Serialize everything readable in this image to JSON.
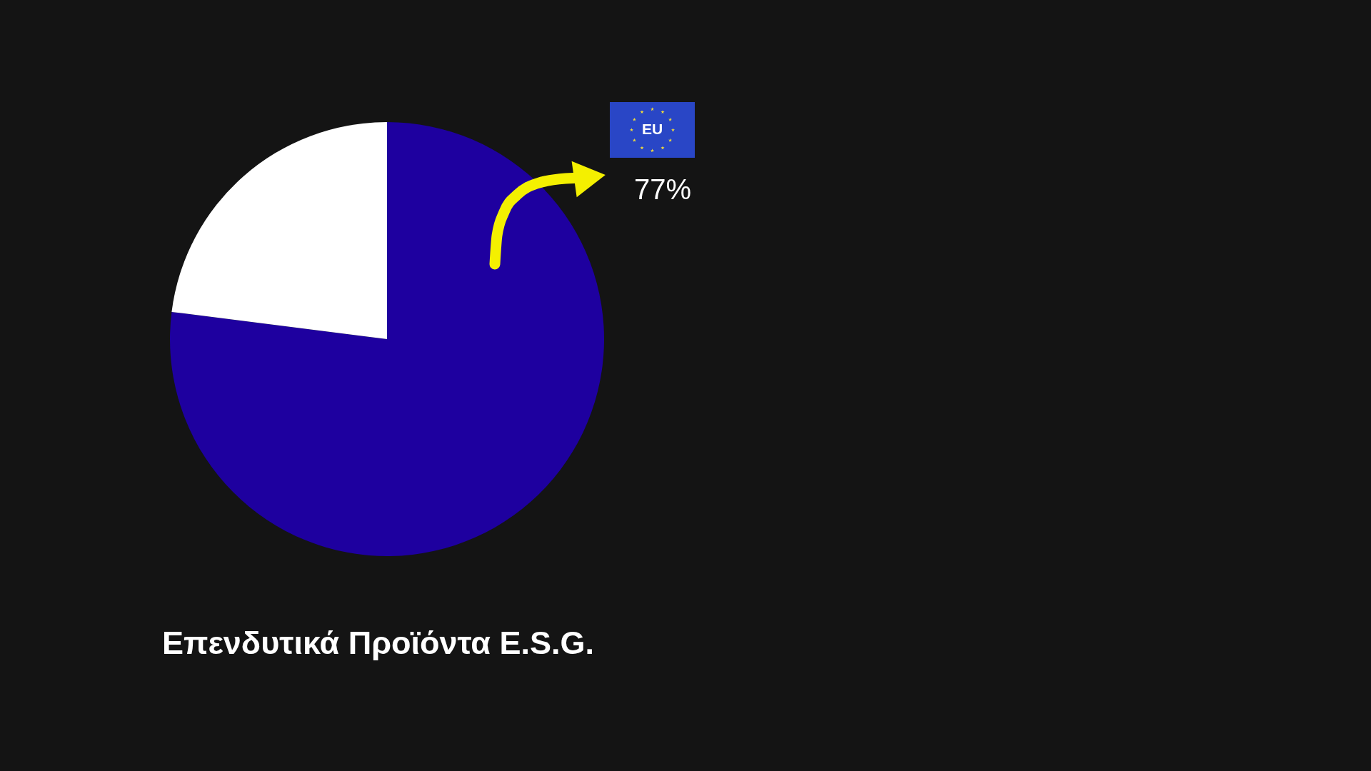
{
  "chart_data": {
    "type": "pie",
    "title": "Επενδυτικά Προϊόντα  E.S.G.",
    "categories": [
      "EU",
      null
    ],
    "values": [
      77,
      23
    ],
    "colors": [
      "#1e009f",
      "#ffffff"
    ],
    "value_labels": [
      "77%",
      null
    ]
  }
}
